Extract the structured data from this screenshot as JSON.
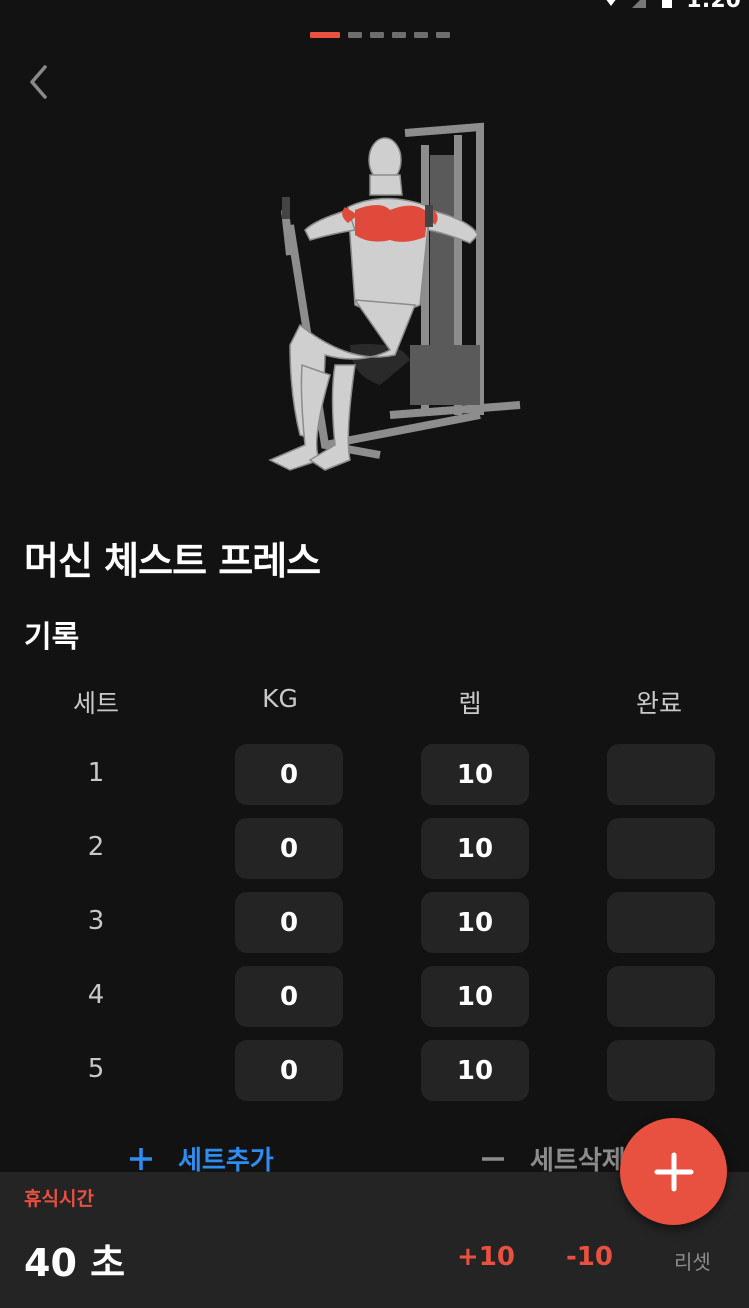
{
  "status_bar": {
    "time": "1:20"
  },
  "pager": {
    "count": 6,
    "active_index": 0
  },
  "exercise": {
    "name": "머신 체스트 프레스"
  },
  "section": {
    "title": "기록"
  },
  "table": {
    "headers": [
      "세트",
      "KG",
      "렙",
      "완료"
    ],
    "rows": [
      {
        "set": "1",
        "kg": "0",
        "reps": "10"
      },
      {
        "set": "2",
        "kg": "0",
        "reps": "10"
      },
      {
        "set": "3",
        "kg": "0",
        "reps": "10"
      },
      {
        "set": "4",
        "kg": "0",
        "reps": "10"
      },
      {
        "set": "5",
        "kg": "0",
        "reps": "10"
      }
    ]
  },
  "actions": {
    "add_set": "세트추가",
    "delete_set": "세트삭제"
  },
  "rest": {
    "label": "휴식시간",
    "value": "40 초",
    "plus": "+10",
    "minus": "-10",
    "reset": "리셋"
  },
  "colors": {
    "accent": "#e8503f",
    "link": "#2f8cf0",
    "background": "#121212",
    "cell": "#242424"
  },
  "icons": {
    "back": "chevron-left-icon",
    "add": "plus-icon",
    "remove": "minus-icon",
    "fab": "plus-icon"
  }
}
